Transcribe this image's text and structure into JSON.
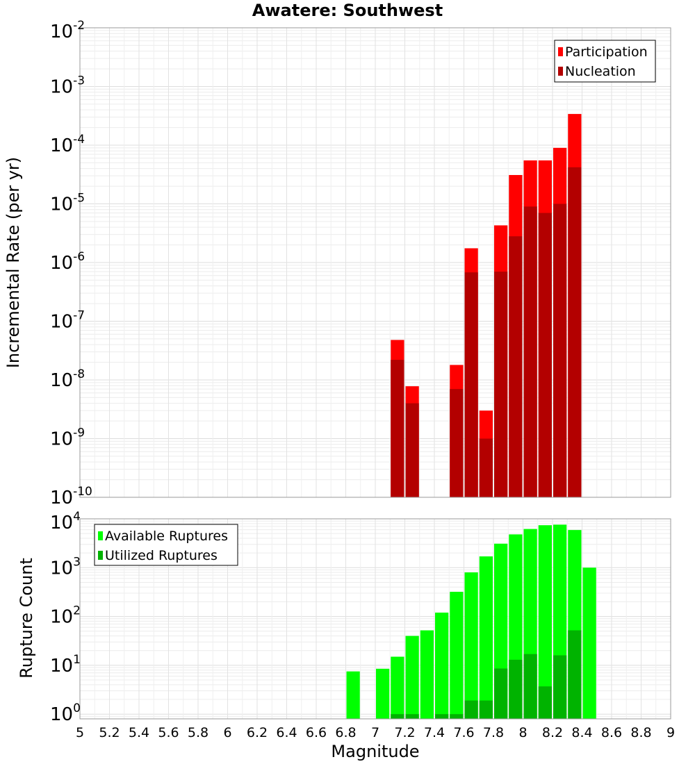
{
  "chart_data": [
    {
      "type": "bar",
      "title": "Awatere: Southwest",
      "ylabel": "Incremental Rate (per yr)",
      "xlabel": "",
      "ylog": true,
      "xlim": [
        5,
        9
      ],
      "ylim": [
        1e-10,
        0.01
      ],
      "grid": true,
      "legend_position": "top-right",
      "y_tick_labels": [
        {
          "base": "10",
          "exp": "-10"
        },
        {
          "base": "10",
          "exp": "-9"
        },
        {
          "base": "10",
          "exp": "-8"
        },
        {
          "base": "10",
          "exp": "-7"
        },
        {
          "base": "10",
          "exp": "-6"
        },
        {
          "base": "10",
          "exp": "-5"
        },
        {
          "base": "10",
          "exp": "-4"
        },
        {
          "base": "10",
          "exp": "-3"
        },
        {
          "base": "10",
          "exp": "-2"
        }
      ],
      "series": [
        {
          "name": "Participation",
          "color": "#ff0000",
          "points": [
            [
              7.15,
              4.8e-08
            ],
            [
              7.25,
              7.8e-09
            ],
            [
              7.55,
              1.8e-08
            ],
            [
              7.65,
              1.75e-06
            ],
            [
              7.75,
              3e-09
            ],
            [
              7.85,
              4.3e-06
            ],
            [
              7.95,
              3.1e-05
            ],
            [
              8.05,
              5.5e-05
            ],
            [
              8.15,
              5.5e-05
            ],
            [
              8.25,
              9e-05
            ],
            [
              8.35,
              0.00034
            ]
          ]
        },
        {
          "name": "Nucleation",
          "color": "#b30000",
          "points": [
            [
              7.15,
              2.2e-08
            ],
            [
              7.25,
              4e-09
            ],
            [
              7.55,
              7e-09
            ],
            [
              7.65,
              6.8e-07
            ],
            [
              7.75,
              1e-09
            ],
            [
              7.85,
              7e-07
            ],
            [
              7.95,
              2.8e-06
            ],
            [
              8.05,
              9e-06
            ],
            [
              8.15,
              7e-06
            ],
            [
              8.25,
              1e-05
            ],
            [
              8.35,
              4.2e-05
            ]
          ]
        }
      ]
    },
    {
      "type": "bar",
      "title": "",
      "ylabel": "Rupture Count",
      "xlabel": "Magnitude",
      "ylog": true,
      "xlim": [
        5,
        9
      ],
      "ylim": [
        0.8,
        10000
      ],
      "grid": true,
      "legend_position": "top-left",
      "x_tick_labels": [
        "5",
        "5.2",
        "5.4",
        "5.6",
        "5.8",
        "6",
        "6.2",
        "6.4",
        "6.6",
        "6.8",
        "7",
        "7.2",
        "7.4",
        "7.6",
        "7.8",
        "8",
        "8.2",
        "8.4",
        "8.6",
        "8.8",
        "9"
      ],
      "y_tick_labels": [
        {
          "base": "10",
          "exp": "0"
        },
        {
          "base": "10",
          "exp": "1"
        },
        {
          "base": "10",
          "exp": "2"
        },
        {
          "base": "10",
          "exp": "3"
        },
        {
          "base": "10",
          "exp": "4"
        }
      ],
      "series": [
        {
          "name": "Available Ruptures",
          "color": "#00ff00",
          "points": [
            [
              6.85,
              7.5
            ],
            [
              7.05,
              8.5
            ],
            [
              7.15,
              15
            ],
            [
              7.25,
              40
            ],
            [
              7.35,
              52
            ],
            [
              7.45,
              120
            ],
            [
              7.55,
              320
            ],
            [
              7.65,
              800
            ],
            [
              7.75,
              1700
            ],
            [
              7.85,
              3100
            ],
            [
              7.95,
              4800
            ],
            [
              8.05,
              6200
            ],
            [
              8.15,
              7400
            ],
            [
              8.25,
              7600
            ],
            [
              8.35,
              5900
            ],
            [
              8.45,
              1000
            ]
          ]
        },
        {
          "name": "Utilized Ruptures",
          "color": "#00b300",
          "points": [
            [
              7.15,
              1
            ],
            [
              7.25,
              1
            ],
            [
              7.45,
              1
            ],
            [
              7.55,
              1
            ],
            [
              7.65,
              1.9
            ],
            [
              7.75,
              1.9
            ],
            [
              7.85,
              8.6
            ],
            [
              7.95,
              13
            ],
            [
              8.05,
              17
            ],
            [
              8.15,
              3.7
            ],
            [
              8.25,
              16
            ],
            [
              8.35,
              52
            ]
          ]
        }
      ]
    }
  ]
}
